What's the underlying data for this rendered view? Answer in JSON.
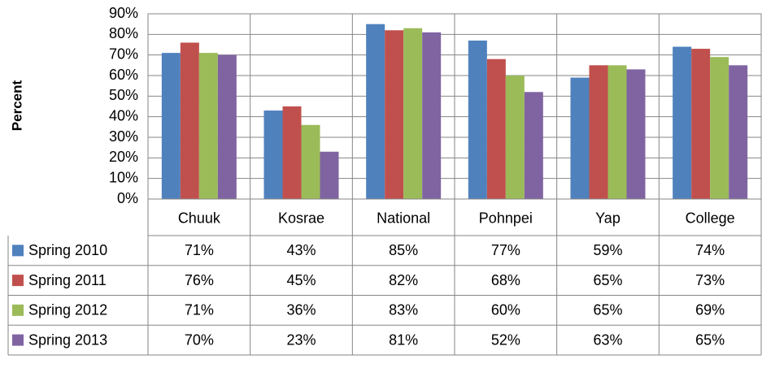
{
  "chart_data": {
    "type": "bar",
    "y_label": "Percent",
    "categories": [
      "Chuuk",
      "Kosrae",
      "National",
      "Pohnpei",
      "Yap",
      "College"
    ],
    "series": [
      {
        "name": "Spring 2010",
        "color": "#4f81bd",
        "values": [
          71,
          43,
          85,
          77,
          59,
          74
        ],
        "value_labels": [
          "71%",
          "43%",
          "85%",
          "77%",
          "59%",
          "74%"
        ]
      },
      {
        "name": "Spring 2011",
        "color": "#c0504d",
        "values": [
          76,
          45,
          82,
          68,
          65,
          73
        ],
        "value_labels": [
          "76%",
          "45%",
          "82%",
          "68%",
          "65%",
          "73%"
        ]
      },
      {
        "name": "Spring 2012",
        "color": "#9bbb59",
        "values": [
          71,
          36,
          83,
          60,
          65,
          69
        ],
        "value_labels": [
          "71%",
          "36%",
          "83%",
          "60%",
          "65%",
          "69%"
        ]
      },
      {
        "name": "Spring 2013",
        "color": "#8064a2",
        "values": [
          70,
          23,
          81,
          52,
          63,
          65
        ],
        "value_labels": [
          "70%",
          "23%",
          "81%",
          "52%",
          "63%",
          "65%"
        ]
      }
    ],
    "ylim": [
      0,
      90
    ],
    "yticks": [
      {
        "value": 0,
        "label": "0%"
      },
      {
        "value": 10,
        "label": "10%"
      },
      {
        "value": 20,
        "label": "20%"
      },
      {
        "value": 30,
        "label": "30%"
      },
      {
        "value": 40,
        "label": "40%"
      },
      {
        "value": 50,
        "label": "50%"
      },
      {
        "value": 60,
        "label": "60%"
      },
      {
        "value": 70,
        "label": "70%"
      },
      {
        "value": 80,
        "label": "80%"
      },
      {
        "value": 90,
        "label": "90%"
      }
    ],
    "grid": true
  }
}
